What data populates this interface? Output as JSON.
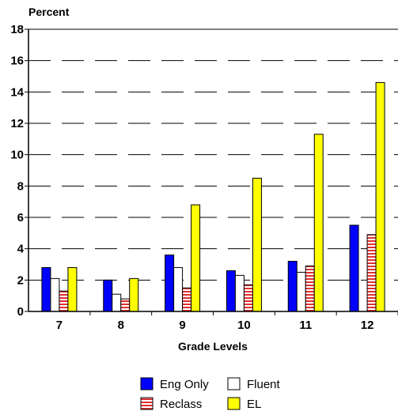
{
  "chart_data": {
    "type": "bar",
    "ylabel": "Percent",
    "xlabel": "Grade Levels",
    "ylim": [
      0,
      18
    ],
    "yticks": [
      0,
      2,
      4,
      6,
      8,
      10,
      12,
      14,
      16,
      18
    ],
    "grid": "horizontal-dashed",
    "legend_position": "bottom-center",
    "categories": [
      "7",
      "8",
      "9",
      "10",
      "11",
      "12"
    ],
    "series": [
      {
        "name": "Eng Only",
        "color": "#0000ff",
        "pattern": "solid",
        "values": [
          2.8,
          2.0,
          3.6,
          2.6,
          3.2,
          5.5
        ]
      },
      {
        "name": "Fluent",
        "color": "#ffffff",
        "pattern": "solid",
        "values": [
          2.1,
          1.1,
          2.8,
          2.3,
          2.5,
          0
        ]
      },
      {
        "name": "Reclass",
        "color": "#ff8080",
        "pattern": "red-horizontal-stripes",
        "values": [
          1.3,
          0.8,
          1.5,
          1.7,
          2.9,
          4.9
        ]
      },
      {
        "name": "EL",
        "color": "#ffff00",
        "pattern": "solid",
        "values": [
          2.8,
          2.1,
          6.8,
          8.5,
          11.3,
          14.6
        ]
      }
    ]
  }
}
